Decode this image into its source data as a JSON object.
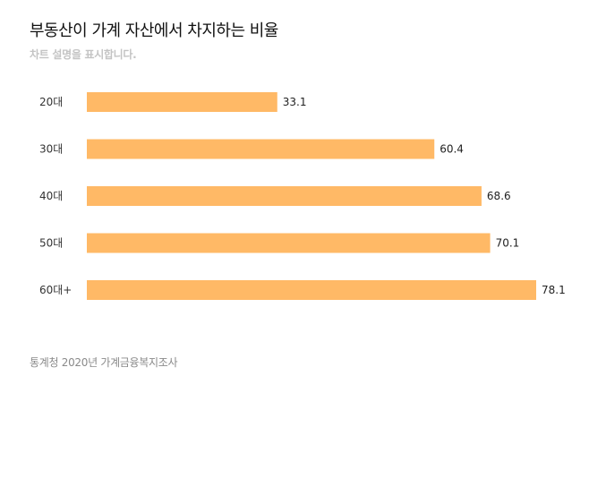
{
  "header": {
    "title": "부동산이 가계 자산에서 차지하는 비율",
    "subtitle": "차트 설명을 표시합니다."
  },
  "footer": {
    "source": "통계청 2020년 가계금융복지조사"
  },
  "colors": {
    "bar": "#ffb966"
  },
  "chart_data": {
    "type": "bar",
    "orientation": "horizontal",
    "title": "부동산이 가계 자산에서 차지하는 비율",
    "subtitle": "차트 설명을 표시합니다.",
    "categories": [
      "20대",
      "30대",
      "40대",
      "50대",
      "60대+"
    ],
    "values": [
      33.1,
      60.4,
      68.6,
      70.1,
      78.1
    ],
    "xlim": [
      0,
      78.1
    ],
    "grid": false,
    "legend": "none",
    "data_labels": true
  }
}
